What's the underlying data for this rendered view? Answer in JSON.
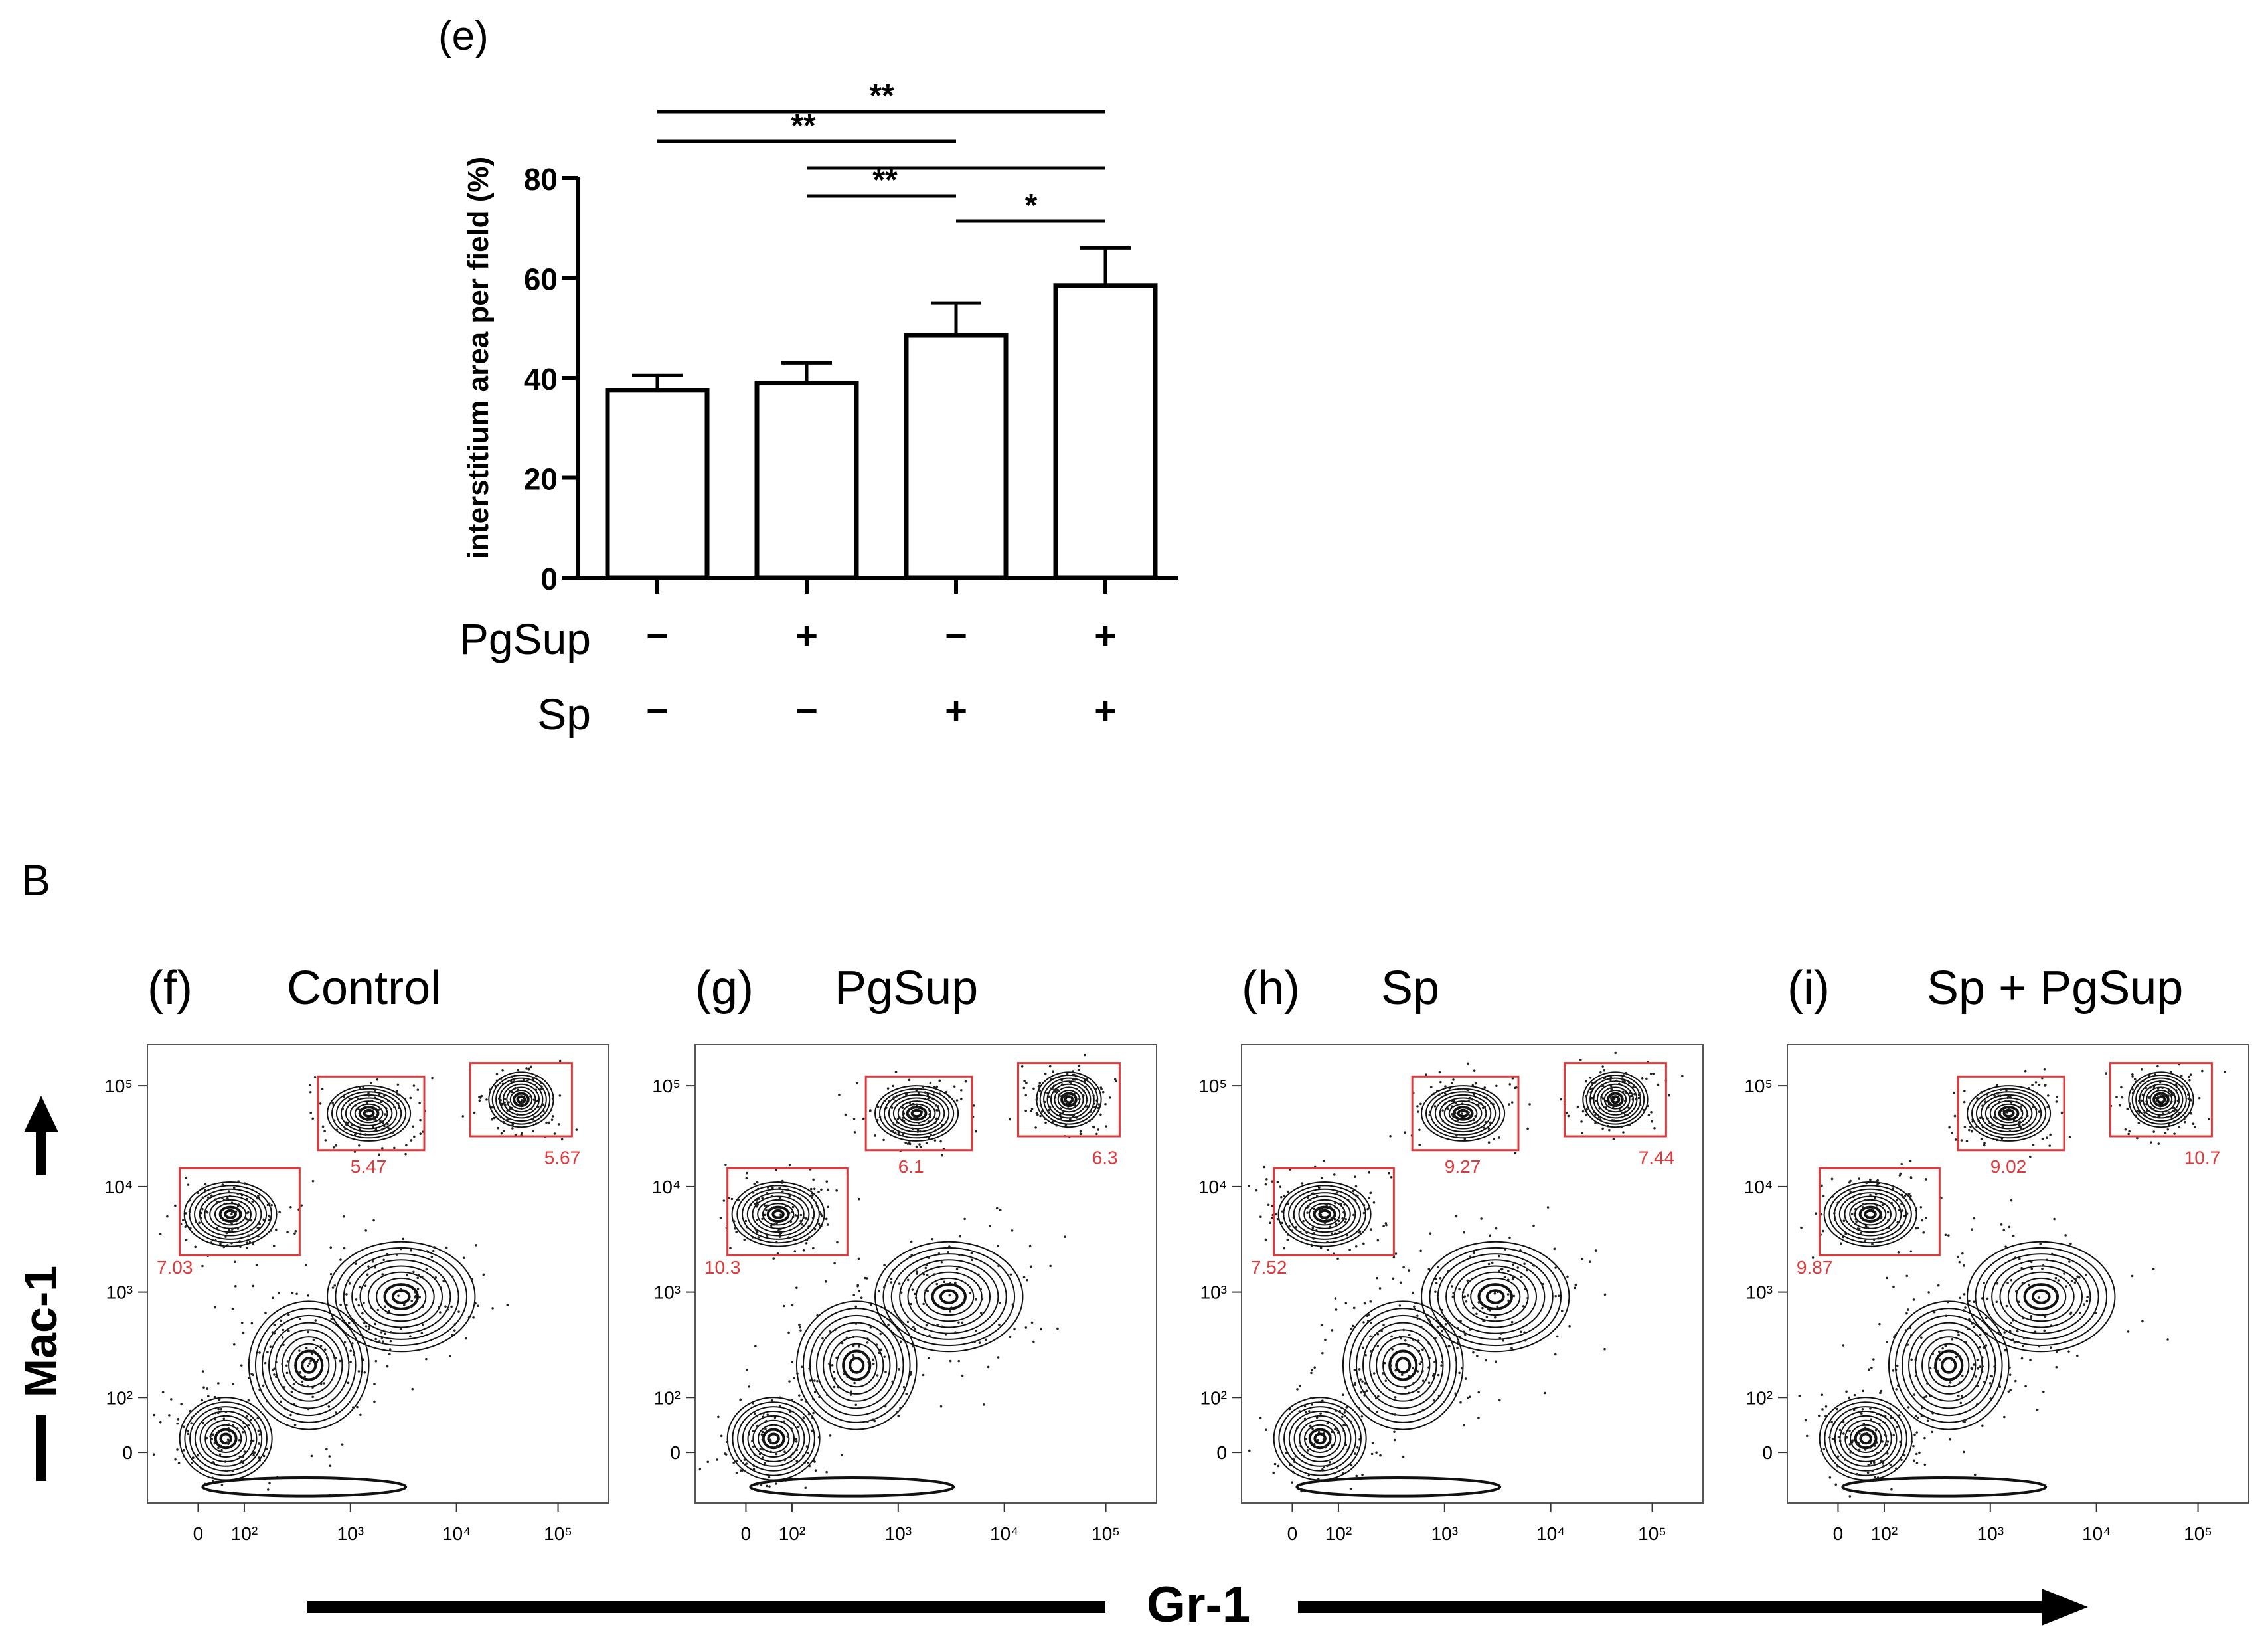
{
  "chart_data": [
    {
      "type": "bar",
      "panel_label": "(e)",
      "ylabel": "interstitium area per field (%)",
      "ylim": [
        0,
        80
      ],
      "yticks": [
        "0",
        "20",
        "40",
        "60",
        "80"
      ],
      "series": [
        {
          "name": "interstitium area",
          "values": [
            37.5,
            39,
            48.5,
            58.5
          ],
          "errors": [
            3,
            4,
            6.5,
            7.5
          ]
        }
      ],
      "factor_rows": [
        {
          "label": "PgSup",
          "levels": [
            "−",
            "+",
            "−",
            "+"
          ]
        },
        {
          "label": "Sp",
          "levels": [
            "−",
            "−",
            "+",
            "+"
          ]
        }
      ],
      "significance": [
        {
          "from": 0,
          "to": 3,
          "label": "**"
        },
        {
          "from": 0,
          "to": 2,
          "label": "**"
        },
        {
          "from": 1,
          "to": 3,
          "label": ""
        },
        {
          "from": 1,
          "to": 2,
          "label": "**"
        },
        {
          "from": 2,
          "to": 3,
          "label": "*"
        }
      ]
    },
    {
      "type": "scatter",
      "subtype": "flow-cytometry-contour",
      "section_label": "B",
      "xlabel": "Gr-1",
      "ylabel": "Mac-1",
      "x_ticks": [
        "0",
        "10²",
        "10³",
        "10⁴",
        "10⁵"
      ],
      "y_ticks": [
        "0",
        "10²",
        "10³",
        "10⁴",
        "10⁵"
      ],
      "panels": [
        {
          "label": "(f)",
          "title": "Control",
          "gates": [
            "7.03",
            "5.47",
            "5.67"
          ]
        },
        {
          "label": "(g)",
          "title": "PgSup",
          "gates": [
            "10.3",
            "6.1",
            "6.3"
          ]
        },
        {
          "label": "(h)",
          "title": "Sp",
          "gates": [
            "7.52",
            "9.27",
            "7.44"
          ]
        },
        {
          "label": "(i)",
          "title": "Sp + PgSup",
          "gates": [
            "9.87",
            "9.02",
            "10.7"
          ]
        }
      ]
    }
  ]
}
